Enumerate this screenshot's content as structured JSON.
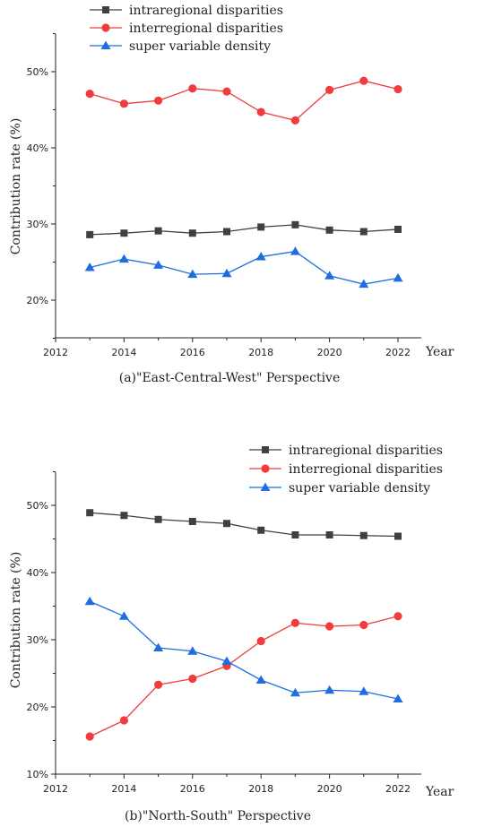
{
  "chart_data": [
    {
      "type": "line",
      "caption": "(a)\"East-Central-West\" Perspective",
      "xlabel": "Year",
      "ylabel": "Contribution rate (%)",
      "xlim": [
        2012,
        2022
      ],
      "ylim": [
        15,
        55
      ],
      "x_ticks": [
        "2012",
        "2014",
        "2016",
        "2018",
        "2020",
        "2022"
      ],
      "y_ticks": [
        "20%",
        "30%",
        "40%",
        "50%"
      ],
      "y_tick_values": [
        20,
        30,
        40,
        50
      ],
      "x": [
        2013,
        2014,
        2015,
        2016,
        2017,
        2018,
        2019,
        2020,
        2021,
        2022
      ],
      "series": [
        {
          "name": "intraregional disparities",
          "color": "#404040",
          "marker": "square",
          "values": [
            28.6,
            28.8,
            29.1,
            28.8,
            29.0,
            29.6,
            29.9,
            29.2,
            29.0,
            29.3
          ]
        },
        {
          "name": "interregional disparities",
          "color": "#f03c3c",
          "marker": "circle",
          "values": [
            47.1,
            45.8,
            46.2,
            47.8,
            47.4,
            44.7,
            43.6,
            47.6,
            48.8,
            47.7
          ]
        },
        {
          "name": "super variable density",
          "color": "#1f6ee0",
          "marker": "triangle",
          "values": [
            24.3,
            25.4,
            24.6,
            23.4,
            23.5,
            25.7,
            26.4,
            23.2,
            22.1,
            22.9
          ]
        }
      ]
    },
    {
      "type": "line",
      "caption": "(b)\"North-South\" Perspective",
      "xlabel": "Year",
      "ylabel": "Contribution rate (%)",
      "xlim": [
        2012,
        2022
      ],
      "ylim": [
        10,
        55
      ],
      "x_ticks": [
        "2012",
        "2014",
        "2016",
        "2018",
        "2020",
        "2022"
      ],
      "y_ticks": [
        "10%",
        "20%",
        "30%",
        "40%",
        "50%"
      ],
      "y_tick_values": [
        10,
        20,
        30,
        40,
        50
      ],
      "x": [
        2013,
        2014,
        2015,
        2016,
        2017,
        2018,
        2019,
        2020,
        2021,
        2022
      ],
      "series": [
        {
          "name": "intraregional disparities",
          "color": "#404040",
          "marker": "square",
          "values": [
            48.9,
            48.5,
            47.9,
            47.6,
            47.3,
            46.3,
            45.6,
            45.6,
            45.5,
            45.4
          ]
        },
        {
          "name": "interregional disparities",
          "color": "#f03c3c",
          "marker": "circle",
          "values": [
            15.6,
            18.0,
            23.3,
            24.2,
            26.1,
            29.8,
            32.5,
            32.0,
            32.2,
            33.5
          ]
        },
        {
          "name": "super variable density",
          "color": "#1f6ee0",
          "marker": "triangle",
          "values": [
            35.7,
            33.5,
            28.8,
            28.3,
            26.8,
            24.0,
            22.1,
            22.5,
            22.3,
            21.2
          ]
        }
      ]
    }
  ]
}
